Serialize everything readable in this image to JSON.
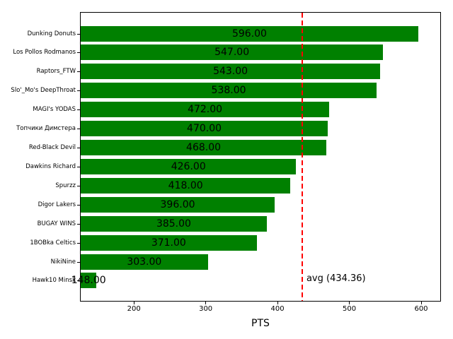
{
  "chart_data": {
    "type": "bar",
    "orientation": "horizontal",
    "title": "",
    "xlabel": "PTS",
    "ylabel": "",
    "categories": [
      "Dunking Donuts",
      "Los Pollos Rodmanos",
      "Raptors_FTW",
      "Slo'_Mo's DeepThroat",
      "MAGI's YODAS",
      "Топчики Димстера",
      "Red-Black Devil",
      "Dawkins Richard",
      "Spurzz",
      "Digor Lakers",
      "BUGAY WINS",
      "1BOBka Celtics",
      "NikiNine",
      "Hawk10 Minsk"
    ],
    "values": [
      596,
      547,
      543,
      538,
      472,
      470,
      468,
      426,
      418,
      396,
      385,
      371,
      303,
      148
    ],
    "bar_value_labels": [
      "596.00",
      "547.00",
      "543.00",
      "538.00",
      "472.00",
      "470.00",
      "468.00",
      "426.00",
      "418.00",
      "396.00",
      "385.00",
      "371.00",
      "303.00",
      "148.00"
    ],
    "bar_color": "#008000",
    "value_label_color": "#000000",
    "xticks": [
      "200",
      "300",
      "400",
      "500",
      "600"
    ],
    "xtick_values": [
      200,
      300,
      400,
      500,
      600
    ],
    "xlim": [
      125.9,
      626.6
    ],
    "grid": false,
    "legend": null,
    "avg_line": {
      "value": 434.36,
      "label": "avg (434.36)",
      "color": "#ff0000",
      "style": "dashed"
    }
  }
}
